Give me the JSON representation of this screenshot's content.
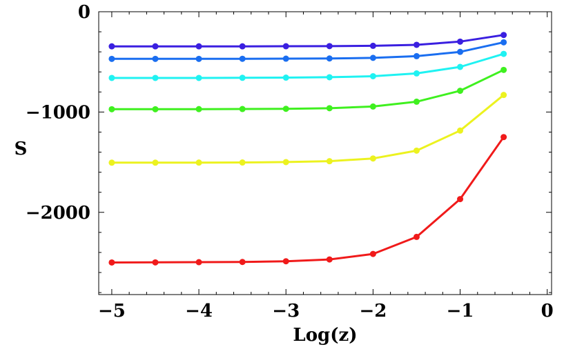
{
  "chart_data": {
    "type": "line",
    "title": "",
    "xlabel": "Log(z)",
    "ylabel": "S",
    "xlim": [
      -5.15,
      0.05
    ],
    "ylim": [
      -2820,
      0
    ],
    "xticks": [
      -5,
      -4,
      -3,
      -2,
      -1,
      0
    ],
    "xtick_labels": [
      "−5",
      "−4",
      "−3",
      "−2",
      "−1",
      "0"
    ],
    "yticks": [
      0,
      -1000,
      -2000
    ],
    "ytick_labels": [
      "0",
      "−1000",
      "−2000"
    ],
    "grid": false,
    "x": [
      -5,
      -4.5,
      -4,
      -3.5,
      -3,
      -2.5,
      -2,
      -1.5,
      -1,
      -0.5
    ],
    "series": [
      {
        "color": "#3a1fe0",
        "values": [
          -345,
          -345,
          -345,
          -345,
          -344,
          -343,
          -340,
          -330,
          -298,
          -232
        ]
      },
      {
        "color": "#1a6ef0",
        "values": [
          -470,
          -470,
          -470,
          -469,
          -468,
          -466,
          -460,
          -443,
          -400,
          -305
        ]
      },
      {
        "color": "#1ff2f2",
        "values": [
          -660,
          -660,
          -660,
          -659,
          -657,
          -653,
          -643,
          -615,
          -550,
          -420
        ]
      },
      {
        "color": "#3ff01f",
        "values": [
          -972,
          -972,
          -971,
          -970,
          -968,
          -962,
          -945,
          -897,
          -788,
          -580
        ]
      },
      {
        "color": "#ecf21f",
        "values": [
          -1505,
          -1505,
          -1504,
          -1503,
          -1499,
          -1490,
          -1463,
          -1385,
          -1185,
          -830
        ]
      },
      {
        "color": "#f01a1a",
        "values": [
          -2500,
          -2499,
          -2497,
          -2495,
          -2488,
          -2470,
          -2415,
          -2245,
          -1868,
          -1250
        ]
      }
    ]
  }
}
